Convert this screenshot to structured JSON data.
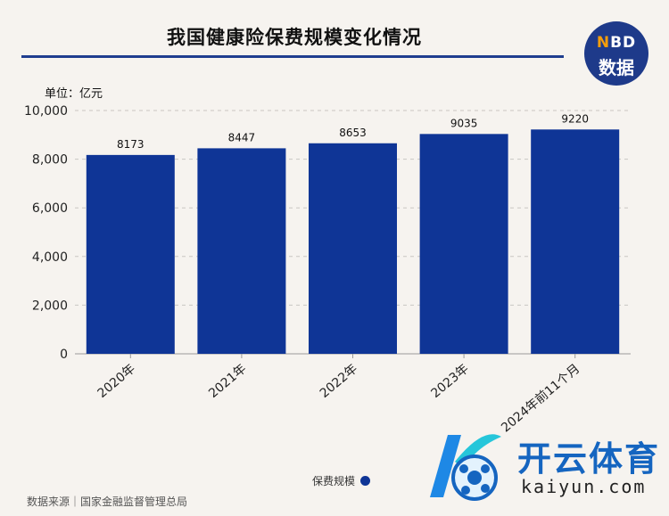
{
  "title": "我国健康险保费规模变化情况",
  "badge": {
    "line1_n": "N",
    "line1_rest": "BD",
    "line2": "数据"
  },
  "unit_label": "单位：亿元",
  "source": "数据来源｜国家金融监督管理总局",
  "legend_label": "保费规模",
  "watermark": {
    "cn": "开云体育",
    "en": "kaiyun.com"
  },
  "colors": {
    "bar": "#0f3596",
    "title_rule": "#1f3d8f",
    "background": "#f6f3ef"
  },
  "chart_data": {
    "type": "bar",
    "categories": [
      "2020年",
      "2021年",
      "2022年",
      "2023年",
      "2024年前11个月"
    ],
    "series": [
      {
        "name": "保费规模",
        "values": [
          8173,
          8447,
          8653,
          9035,
          9220
        ]
      }
    ],
    "ylim": [
      0,
      10000
    ],
    "yticks": [
      0,
      2000,
      4000,
      6000,
      8000,
      10000
    ],
    "ytick_labels": [
      "0",
      "2,000",
      "4,000",
      "6,000",
      "8,000",
      "10,000"
    ],
    "grid": true,
    "data_labels": true,
    "legend_position": "bottom"
  }
}
